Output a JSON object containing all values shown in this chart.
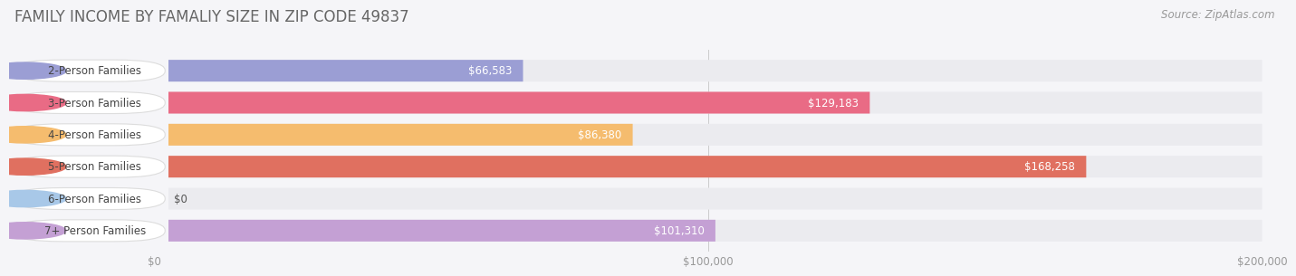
{
  "title": "FAMILY INCOME BY FAMALIY SIZE IN ZIP CODE 49837",
  "source": "Source: ZipAtlas.com",
  "categories": [
    "2-Person Families",
    "3-Person Families",
    "4-Person Families",
    "5-Person Families",
    "6-Person Families",
    "7+ Person Families"
  ],
  "values": [
    66583,
    129183,
    86380,
    168258,
    0,
    101310
  ],
  "bar_colors": [
    "#9b9ed4",
    "#e96b85",
    "#f5bc6e",
    "#e07060",
    "#a8c8e8",
    "#c4a0d4"
  ],
  "bar_bg_color": "#ebebef",
  "label_bg_color": "#ffffff",
  "xlim": [
    0,
    200000
  ],
  "xticks": [
    0,
    100000,
    200000
  ],
  "xtick_labels": [
    "$0",
    "$100,000",
    "$200,000"
  ],
  "background_color": "#f5f5f8",
  "title_fontsize": 12,
  "source_fontsize": 8.5,
  "bar_height": 0.68,
  "label_fontsize": 8.5,
  "value_fontsize": 8.5
}
